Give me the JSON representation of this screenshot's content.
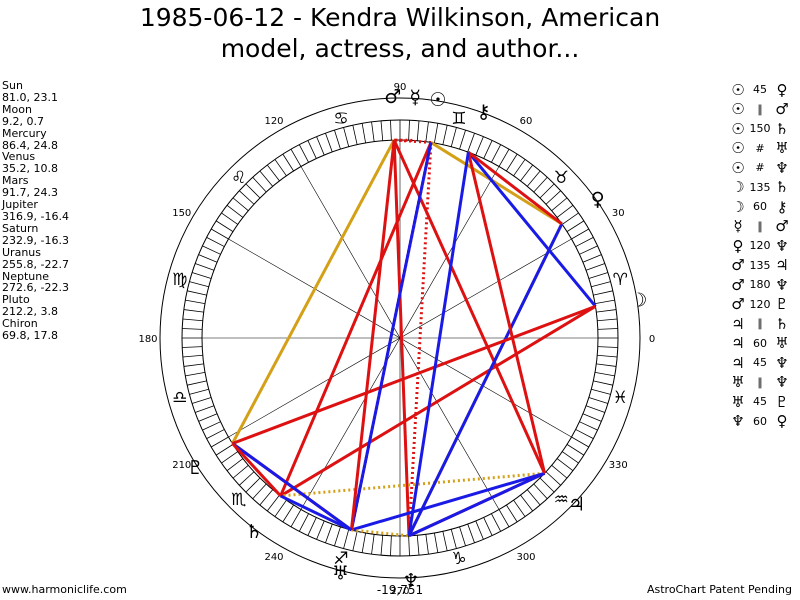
{
  "title": "1985-06-12 - Kendra Wilkinson, American model, actress, and author...",
  "footer": {
    "left": "www.harmoniclife.com",
    "right": "AstroChart Patent Pending"
  },
  "chart": {
    "degree_labels": [
      "0",
      "30",
      "60",
      "90",
      "120",
      "150",
      "180",
      "210",
      "240",
      "270",
      "300",
      "330"
    ],
    "bottom_readout": "-19,751",
    "zodiac": [
      {
        "sign": "aries",
        "glyph": "♈",
        "lon": 15
      },
      {
        "sign": "taurus",
        "glyph": "♉",
        "lon": 45
      },
      {
        "sign": "gemini",
        "glyph": "♊",
        "lon": 75
      },
      {
        "sign": "cancer",
        "glyph": "♋",
        "lon": 105
      },
      {
        "sign": "leo",
        "glyph": "♌",
        "lon": 135
      },
      {
        "sign": "virgo",
        "glyph": "♍",
        "lon": 165
      },
      {
        "sign": "libra",
        "glyph": "♎",
        "lon": 195
      },
      {
        "sign": "scorpio",
        "glyph": "♏",
        "lon": 225
      },
      {
        "sign": "sagittarius",
        "glyph": "♐",
        "lon": 255
      },
      {
        "sign": "capricorn",
        "glyph": "♑",
        "lon": 285
      },
      {
        "sign": "aquarius",
        "glyph": "♒",
        "lon": 315
      },
      {
        "sign": "pisces",
        "glyph": "♓",
        "lon": 345
      }
    ],
    "planets": [
      {
        "name": "Sun",
        "glyph": "☉",
        "lon": 81.0,
        "lat": 23.1,
        "pos": "81.0, 23.1"
      },
      {
        "name": "Moon",
        "glyph": "☽",
        "lon": 9.2,
        "lat": 0.7,
        "pos": "9.2, 0.7"
      },
      {
        "name": "Mercury",
        "glyph": "☿",
        "lon": 86.4,
        "lat": 24.8,
        "pos": "86.4, 24.8"
      },
      {
        "name": "Venus",
        "glyph": "♀",
        "lon": 35.2,
        "lat": 10.8,
        "pos": "35.2, 10.8"
      },
      {
        "name": "Mars",
        "glyph": "♂",
        "lon": 91.7,
        "lat": 24.3,
        "pos": "91.7, 24.3"
      },
      {
        "name": "Jupiter",
        "glyph": "♃",
        "lon": 316.9,
        "lat": -16.4,
        "pos": "316.9, -16.4"
      },
      {
        "name": "Saturn",
        "glyph": "♄",
        "lon": 232.9,
        "lat": -16.3,
        "pos": "232.9, -16.3"
      },
      {
        "name": "Uranus",
        "glyph": "♅",
        "lon": 255.8,
        "lat": -22.7,
        "pos": "255.8, -22.7"
      },
      {
        "name": "Neptune",
        "glyph": "♆",
        "lon": 272.6,
        "lat": -22.3,
        "pos": "272.6, -22.3"
      },
      {
        "name": "Pluto",
        "glyph": "♇",
        "lon": 212.2,
        "lat": 3.8,
        "pos": "212.2, 3.8"
      },
      {
        "name": "Chiron",
        "glyph": "⚷",
        "lon": 69.8,
        "lat": 17.8,
        "pos": "69.8, 17.8"
      }
    ],
    "aspects": [
      {
        "p1": "Sun",
        "p2": "Venus",
        "label": "45",
        "color": "#d4a017",
        "dashed": false
      },
      {
        "p1": "Sun",
        "p2": "Mars",
        "label": "∥",
        "color": "#dd1111",
        "dashed": true
      },
      {
        "p1": "Sun",
        "p2": "Saturn",
        "label": "150",
        "color": "#dd1111",
        "dashed": false
      },
      {
        "p1": "Sun",
        "p2": "Uranus",
        "label": "#",
        "color": "#dd1111",
        "dashed": true
      },
      {
        "p1": "Sun",
        "p2": "Neptune",
        "label": "#",
        "color": "#dd1111",
        "dashed": true
      },
      {
        "p1": "Moon",
        "p2": "Saturn",
        "label": "135",
        "color": "#dd1111",
        "dashed": false
      },
      {
        "p1": "Moon",
        "p2": "Chiron",
        "label": "60",
        "color": "#1a1ae6",
        "dashed": false
      },
      {
        "p1": "Mercury",
        "p2": "Mars",
        "label": "∥",
        "color": "#dd1111",
        "dashed": true
      },
      {
        "p1": "Venus",
        "p2": "Neptune",
        "label": "120",
        "color": "#d4a017",
        "dashed": false
      },
      {
        "p1": "Mars",
        "p2": "Jupiter",
        "label": "135",
        "color": "#dd1111",
        "dashed": false
      },
      {
        "p1": "Mars",
        "p2": "Neptune",
        "label": "180",
        "color": "#dd1111",
        "dashed": false
      },
      {
        "p1": "Mars",
        "p2": "Pluto",
        "label": "120",
        "color": "#d4a017",
        "dashed": false
      },
      {
        "p1": "Jupiter",
        "p2": "Saturn",
        "label": "∥",
        "color": "#d4a017",
        "dashed": true
      },
      {
        "p1": "Jupiter",
        "p2": "Uranus",
        "label": "60",
        "color": "#1a1ae6",
        "dashed": false
      },
      {
        "p1": "Jupiter",
        "p2": "Neptune",
        "label": "45",
        "color": "#dd1111",
        "dashed": false
      },
      {
        "p1": "Uranus",
        "p2": "Neptune",
        "label": "∥",
        "color": "#d4a017",
        "dashed": true
      },
      {
        "p1": "Uranus",
        "p2": "Pluto",
        "label": "45",
        "color": "#dd1111",
        "dashed": false
      },
      {
        "p1": "Neptune",
        "p2": "Venus",
        "label": "60",
        "color": "#1a1ae6",
        "dashed": false
      }
    ],
    "extra_lines": [
      {
        "p1": "Moon",
        "p2": "Pluto",
        "color": "#dd1111",
        "dashed": false
      },
      {
        "p1": "Sun",
        "p2": "Uranus",
        "color": "#1a1ae6",
        "dashed": false
      },
      {
        "p1": "Mars",
        "p2": "Uranus",
        "color": "#dd1111",
        "dashed": false
      },
      {
        "p1": "Saturn",
        "p2": "Uranus",
        "color": "#1a1ae6",
        "dashed": false
      },
      {
        "p1": "Pluto",
        "p2": "Uranus",
        "color": "#1a1ae6",
        "dashed": false
      },
      {
        "p1": "Neptune",
        "p2": "Jupiter",
        "color": "#1a1ae6",
        "dashed": false
      },
      {
        "p1": "Pluto",
        "p2": "Saturn",
        "color": "#dd1111",
        "dashed": false
      },
      {
        "p1": "Chiron",
        "p2": "Venus",
        "color": "#dd1111",
        "dashed": false
      },
      {
        "p1": "Chiron",
        "p2": "Jupiter",
        "color": "#dd1111",
        "dashed": false
      },
      {
        "p1": "Neptune",
        "p2": "Chiron",
        "color": "#1a1ae6",
        "dashed": false
      }
    ]
  }
}
